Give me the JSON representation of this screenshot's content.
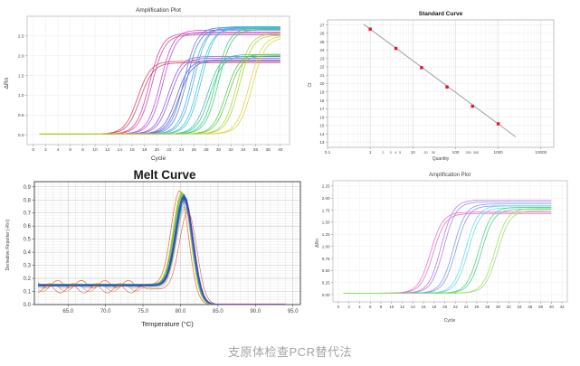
{
  "caption": "支原体检查PCR替代法",
  "chart_data": [
    {
      "id": "amp_tl",
      "type": "line",
      "title": "Amplification Plot",
      "xlabel": "Cycle",
      "ylabel": "ΔRn",
      "xlim": [
        -1,
        41.5
      ],
      "ylim": [
        -0.25,
        3.0
      ],
      "xticks": [
        0,
        2,
        4,
        6,
        8,
        10,
        12,
        14,
        16,
        18,
        20,
        22,
        24,
        26,
        28,
        30,
        32,
        34,
        36,
        38,
        40
      ],
      "yticks": [
        0,
        0.5,
        1.0,
        1.5,
        2.0,
        2.5
      ],
      "x_decimals": 0,
      "y_decimals": 1,
      "baseline": 0.02,
      "slope": 1.05,
      "series": [
        {
          "color": "#d93452",
          "ct": 16.9,
          "plateau": 1.86
        },
        {
          "color": "#d93452",
          "ct": 17.35,
          "plateau": 1.82
        },
        {
          "color": "#d6399b",
          "ct": 18.8,
          "plateau": 2.57
        },
        {
          "color": "#d6399b",
          "ct": 19.2,
          "plateau": 2.53
        },
        {
          "color": "#bb3fd9",
          "ct": 20.6,
          "plateau": 2.65
        },
        {
          "color": "#bb3fd9",
          "ct": 21.0,
          "plateau": 2.6
        },
        {
          "color": "#8a4ae0",
          "ct": 21.8,
          "plateau": 1.98
        },
        {
          "color": "#8a4ae0",
          "ct": 22.2,
          "plateau": 1.94
        },
        {
          "color": "#5a54d9",
          "ct": 23.2,
          "plateau": 1.9
        },
        {
          "color": "#5a54d9",
          "ct": 23.6,
          "plateau": 1.87
        },
        {
          "color": "#4a77e0",
          "ct": 24.4,
          "plateau": 2.72
        },
        {
          "color": "#4a77e0",
          "ct": 24.8,
          "plateau": 2.68
        },
        {
          "color": "#3fa8e6",
          "ct": 25.6,
          "plateau": 2.7
        },
        {
          "color": "#3fa8e6",
          "ct": 26.0,
          "plateau": 2.74
        },
        {
          "color": "#2fc4d9",
          "ct": 26.8,
          "plateau": 2.68
        },
        {
          "color": "#2fc4d9",
          "ct": 27.2,
          "plateau": 2.72
        },
        {
          "color": "#23bfa3",
          "ct": 28.2,
          "plateau": 2.03
        },
        {
          "color": "#23bfa3",
          "ct": 28.6,
          "plateau": 1.99
        },
        {
          "color": "#35cc71",
          "ct": 29.6,
          "plateau": 2.7
        },
        {
          "color": "#35cc71",
          "ct": 30.0,
          "plateau": 2.66
        },
        {
          "color": "#4ec93f",
          "ct": 31.2,
          "plateau": 2.04
        },
        {
          "color": "#4ec93f",
          "ct": 31.6,
          "plateau": 2.0
        },
        {
          "color": "#a8d42f",
          "ct": 33.0,
          "plateau": 2.56
        },
        {
          "color": "#a8d42f",
          "ct": 33.4,
          "plateau": 2.52
        },
        {
          "color": "#ddd23a",
          "ct": 35.0,
          "plateau": 2.5
        },
        {
          "color": "#ddd23a",
          "ct": 35.5,
          "plateau": 2.46
        }
      ]
    },
    {
      "id": "std",
      "type": "scatter",
      "title": "Standard Curve",
      "xlabel": "Quantity",
      "ylabel": "Ct",
      "xscale": "log",
      "xlim": [
        0.1,
        20000
      ],
      "ylim": [
        12.4,
        27.6
      ],
      "xticks": [
        0.1,
        1,
        10,
        100,
        1000,
        10000
      ],
      "minor_tick_labels": [
        2,
        3,
        4,
        5,
        20,
        30,
        200,
        300
      ],
      "yticks": [
        13,
        14,
        15,
        16,
        17,
        18,
        19,
        20,
        21,
        22,
        23,
        24,
        25,
        26,
        27
      ],
      "point_color": "#e8112d",
      "line_color": "#a0a0a0",
      "points": [
        {
          "quantity": 1,
          "ct": 26.5
        },
        {
          "quantity": 4,
          "ct": 24.2
        },
        {
          "quantity": 16,
          "ct": 21.9
        },
        {
          "quantity": 63,
          "ct": 19.6
        },
        {
          "quantity": 250,
          "ct": 17.3
        },
        {
          "quantity": 1000,
          "ct": 15.2
        }
      ],
      "fit": {
        "intercept": 26.5,
        "slope_per_decade": -3.77,
        "x_start": 0.7,
        "x_end": 2600
      }
    },
    {
      "id": "melt",
      "type": "line",
      "title": "Melt Curve",
      "xlabel": "Temperature (°C)",
      "ylabel": "Derivative Reporter (-Rn')",
      "xlim": [
        60.5,
        96
      ],
      "ylim": [
        0,
        0.94
      ],
      "xticks": [
        65.0,
        70.0,
        75.0,
        80.0,
        85.0,
        90.0,
        95.0
      ],
      "yticks": [
        0.0,
        0.1,
        0.2,
        0.3,
        0.4,
        0.5,
        0.6,
        0.7,
        0.8,
        0.9
      ],
      "x_decimals": 1,
      "y_decimals": 1,
      "series": [
        {
          "color": "#e8641f",
          "tm": 79.9,
          "peak": 0.88,
          "base": 0.155,
          "wiggle": 0.03,
          "sw": 0.7
        },
        {
          "color": "#ef8f1f",
          "tm": 80.6,
          "peak": 0.74,
          "base": 0.125,
          "wiggle": 0.025,
          "sw": 0.6
        },
        {
          "color": "#e7bb29",
          "tm": 80.3,
          "peak": 0.84,
          "base": 0.15,
          "wiggle": 0.012,
          "sw": 0.9
        },
        {
          "color": "#d6ce2e",
          "tm": 80.5,
          "peak": 0.82,
          "base": 0.145,
          "wiggle": 0,
          "sw": 0.9
        },
        {
          "color": "#9fcf3a",
          "tm": 80.2,
          "peak": 0.87,
          "base": 0.15,
          "wiggle": 0,
          "sw": 1.1
        },
        {
          "color": "#63bf3f",
          "tm": 80.3,
          "peak": 0.86,
          "base": 0.155,
          "wiggle": 0,
          "sw": 1.1
        },
        {
          "color": "#36a84d",
          "tm": 80.45,
          "peak": 0.85,
          "base": 0.148,
          "wiggle": 0,
          "sw": 1.0
        },
        {
          "color": "#28b296",
          "tm": 80.5,
          "peak": 0.83,
          "base": 0.143,
          "wiggle": 0,
          "sw": 0.9
        },
        {
          "color": "#41c4d9",
          "tm": 80.55,
          "peak": 0.76,
          "base": 0.138,
          "wiggle": 0.01,
          "sw": 0.6
        },
        {
          "color": "#2f9fd9",
          "tm": 80.6,
          "peak": 0.8,
          "base": 0.14,
          "wiggle": 0,
          "sw": 0.9
        },
        {
          "color": "#3a6fd9",
          "tm": 80.5,
          "peak": 0.84,
          "base": 0.147,
          "wiggle": 0,
          "sw": 1.1
        },
        {
          "color": "#2b4fc6",
          "tm": 80.45,
          "peak": 0.83,
          "base": 0.15,
          "wiggle": 0,
          "sw": 1.2
        },
        {
          "color": "#22409f",
          "tm": 80.55,
          "peak": 0.82,
          "base": 0.145,
          "wiggle": 0,
          "sw": 1.0
        },
        {
          "color": "#6659cc",
          "tm": 80.4,
          "peak": 0.81,
          "base": 0.142,
          "wiggle": 0,
          "sw": 0.9
        },
        {
          "color": "#2e53c9",
          "tm": 80.5,
          "peak": 0.845,
          "base": 0.15,
          "wiggle": 0,
          "sw": 1.1
        },
        {
          "color": "#e23f2f",
          "tm": 81.0,
          "peak": 0.72,
          "base": 0.118,
          "wiggle": 0.03,
          "sw": 0.55
        }
      ]
    },
    {
      "id": "amp_br",
      "type": "line",
      "title": "Amplification Plot",
      "xlabel": "Cycle",
      "ylabel": "ΔRn",
      "xlim": [
        -1,
        43
      ],
      "ylim": [
        -0.15,
        2.36
      ],
      "xticks": [
        0,
        2,
        4,
        6,
        8,
        10,
        12,
        14,
        16,
        18,
        20,
        22,
        24,
        26,
        28,
        30,
        32,
        34,
        36,
        38,
        40,
        42
      ],
      "yticks": [
        0,
        0.25,
        0.5,
        0.75,
        1.0,
        1.25,
        1.5,
        1.75,
        2.0,
        2.25
      ],
      "x_decimals": 0,
      "y_decimals": 2,
      "baseline": 0.03,
      "slope": 1.15,
      "series": [
        {
          "color": "#e866cc",
          "ct": 17.3,
          "plateau": 1.71
        },
        {
          "color": "#e866cc",
          "ct": 17.8,
          "plateau": 1.68
        },
        {
          "color": "#a87ae8",
          "ct": 19.3,
          "plateau": 1.96
        },
        {
          "color": "#a87ae8",
          "ct": 19.8,
          "plateau": 1.92
        },
        {
          "color": "#7b8fe8",
          "ct": 21.6,
          "plateau": 1.88
        },
        {
          "color": "#7b8fe8",
          "ct": 22.1,
          "plateau": 1.84
        },
        {
          "color": "#5cd9e8",
          "ct": 23.9,
          "plateau": 1.84
        },
        {
          "color": "#5cd9e8",
          "ct": 24.4,
          "plateau": 1.8
        },
        {
          "color": "#47cc7e",
          "ct": 26.4,
          "plateau": 1.81
        },
        {
          "color": "#47cc7e",
          "ct": 26.9,
          "plateau": 1.77
        },
        {
          "color": "#96e05c",
          "ct": 29.4,
          "plateau": 1.78
        },
        {
          "color": "#96e05c",
          "ct": 29.9,
          "plateau": 1.74
        }
      ]
    }
  ]
}
